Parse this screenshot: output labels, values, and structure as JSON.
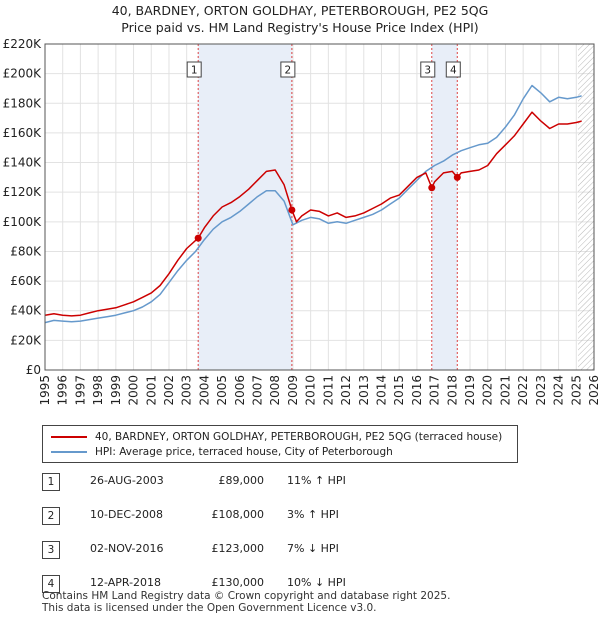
{
  "title": {
    "line1": "40, BARDNEY, ORTON GOLDHAY, PETERBOROUGH, PE2 5QG",
    "line2": "Price paid vs. HM Land Registry's House Price Index (HPI)"
  },
  "legend": {
    "property": "40, BARDNEY, ORTON GOLDHAY, PETERBOROUGH, PE2 5QG (terraced house)",
    "hpi": "HPI: Average price, terraced house, City of Peterborough"
  },
  "colors": {
    "property": "#cc0000",
    "hpi": "#6699cc",
    "shade": "#e8eef8",
    "marker_line": "#dd4444",
    "grid": "#e2e2e2"
  },
  "transactions": [
    {
      "num": "1",
      "date": "26-AUG-2003",
      "price": "£89,000",
      "hpi": "11% ↑ HPI"
    },
    {
      "num": "2",
      "date": "10-DEC-2008",
      "price": "£108,000",
      "hpi": "3% ↑ HPI"
    },
    {
      "num": "3",
      "date": "02-NOV-2016",
      "price": "£123,000",
      "hpi": "7% ↓ HPI"
    },
    {
      "num": "4",
      "date": "12-APR-2018",
      "price": "£130,000",
      "hpi": "10% ↓ HPI"
    }
  ],
  "footer": {
    "line1": "Contains HM Land Registry data © Crown copyright and database right 2025.",
    "line2": "This data is licensed under the Open Government Licence v3.0."
  },
  "chart_data": {
    "type": "line",
    "title": "40, BARDNEY, ORTON GOLDHAY, PETERBOROUGH, PE2 5QG",
    "subtitle": "Price paid vs. HM Land Registry's House Price Index (HPI)",
    "xlabel": "",
    "ylabel": "",
    "xlim": [
      1995,
      2026
    ],
    "ylim": [
      0,
      220000
    ],
    "x_ticks": [
      1995,
      1996,
      1997,
      1998,
      1999,
      2000,
      2001,
      2002,
      2003,
      2004,
      2005,
      2006,
      2007,
      2008,
      2009,
      2010,
      2011,
      2012,
      2013,
      2014,
      2015,
      2016,
      2017,
      2018,
      2019,
      2020,
      2021,
      2022,
      2023,
      2024,
      2025,
      2026
    ],
    "y_ticks": [
      {
        "value": 0,
        "label": "£0"
      },
      {
        "value": 20000,
        "label": "£20K"
      },
      {
        "value": 40000,
        "label": "£40K"
      },
      {
        "value": 60000,
        "label": "£60K"
      },
      {
        "value": 80000,
        "label": "£80K"
      },
      {
        "value": 100000,
        "label": "£100K"
      },
      {
        "value": 120000,
        "label": "£120K"
      },
      {
        "value": 140000,
        "label": "£140K"
      },
      {
        "value": 160000,
        "label": "£160K"
      },
      {
        "value": 180000,
        "label": "£180K"
      },
      {
        "value": 200000,
        "label": "£200K"
      },
      {
        "value": 220000,
        "label": "£220K"
      }
    ],
    "grid": true,
    "shaded_ranges": [
      [
        2003.65,
        2008.94
      ],
      [
        2016.84,
        2018.28
      ]
    ],
    "future_hatch_from": 2025.1,
    "sales": [
      {
        "label": "1",
        "x": 2003.65,
        "y": 89000
      },
      {
        "label": "2",
        "x": 2008.94,
        "y": 108000
      },
      {
        "label": "3",
        "x": 2016.84,
        "y": 123000
      },
      {
        "label": "4",
        "x": 2018.28,
        "y": 130000
      }
    ],
    "series": [
      {
        "name": "40, BARDNEY, ORTON GOLDHAY, PETERBOROUGH, PE2 5QG (terraced house)",
        "color": "#cc0000",
        "x": [
          1995,
          1995.5,
          1996,
          1996.5,
          1997,
          1997.5,
          1998,
          1998.5,
          1999,
          1999.5,
          2000,
          2000.5,
          2001,
          2001.5,
          2002,
          2002.5,
          2003,
          2003.65,
          2004,
          2004.5,
          2005,
          2005.5,
          2006,
          2006.5,
          2007,
          2007.5,
          2008,
          2008.5,
          2008.94,
          2009.2,
          2009.5,
          2010,
          2010.5,
          2011,
          2011.5,
          2012,
          2012.5,
          2013,
          2013.5,
          2014,
          2014.5,
          2015,
          2015.5,
          2016,
          2016.5,
          2016.84,
          2017,
          2017.5,
          2018,
          2018.28,
          2018.5,
          2019,
          2019.5,
          2020,
          2020.5,
          2021,
          2021.5,
          2022,
          2022.5,
          2023,
          2023.5,
          2024,
          2024.5,
          2025,
          2025.3
        ],
        "y": [
          37000,
          38000,
          37000,
          36500,
          37000,
          38500,
          40000,
          41000,
          42000,
          44000,
          46000,
          49000,
          52000,
          57000,
          65000,
          74000,
          82000,
          89000,
          96000,
          104000,
          110000,
          113000,
          117000,
          122000,
          128000,
          134000,
          135000,
          125000,
          108000,
          100000,
          104000,
          108000,
          107000,
          104000,
          106000,
          103000,
          104000,
          106000,
          109000,
          112000,
          116000,
          118000,
          124000,
          130000,
          133000,
          123000,
          127000,
          133000,
          134000,
          130000,
          133000,
          134000,
          135000,
          138000,
          146000,
          152000,
          158000,
          166000,
          174000,
          168000,
          163000,
          166000,
          166000,
          167000,
          168000
        ]
      },
      {
        "name": "HPI: Average price, terraced house, City of Peterborough",
        "color": "#6699cc",
        "x": [
          1995,
          1995.5,
          1996,
          1996.5,
          1997,
          1997.5,
          1998,
          1998.5,
          1999,
          1999.5,
          2000,
          2000.5,
          2001,
          2001.5,
          2002,
          2002.5,
          2003,
          2003.5,
          2004,
          2004.5,
          2005,
          2005.5,
          2006,
          2006.5,
          2007,
          2007.5,
          2008,
          2008.5,
          2009,
          2009.5,
          2010,
          2010.5,
          2011,
          2011.5,
          2012,
          2012.5,
          2013,
          2013.5,
          2014,
          2014.5,
          2015,
          2015.5,
          2016,
          2016.5,
          2017,
          2017.5,
          2018,
          2018.5,
          2019,
          2019.5,
          2020,
          2020.5,
          2021,
          2021.5,
          2022,
          2022.5,
          2023,
          2023.5,
          2024,
          2024.5,
          2025,
          2025.3
        ],
        "y": [
          32000,
          33500,
          33000,
          32500,
          33000,
          34000,
          35000,
          36000,
          37000,
          38500,
          40000,
          42500,
          46000,
          51000,
          59000,
          67000,
          74000,
          80000,
          88000,
          95000,
          100000,
          103000,
          107000,
          112000,
          117000,
          121000,
          121000,
          114000,
          98000,
          101000,
          103000,
          102000,
          99000,
          100000,
          99000,
          101000,
          103000,
          105000,
          108000,
          112000,
          116000,
          122000,
          128000,
          134000,
          138000,
          141000,
          145000,
          148000,
          150000,
          152000,
          153000,
          157000,
          164000,
          172000,
          183000,
          192000,
          187000,
          181000,
          184000,
          183000,
          184000,
          185000
        ]
      }
    ]
  }
}
